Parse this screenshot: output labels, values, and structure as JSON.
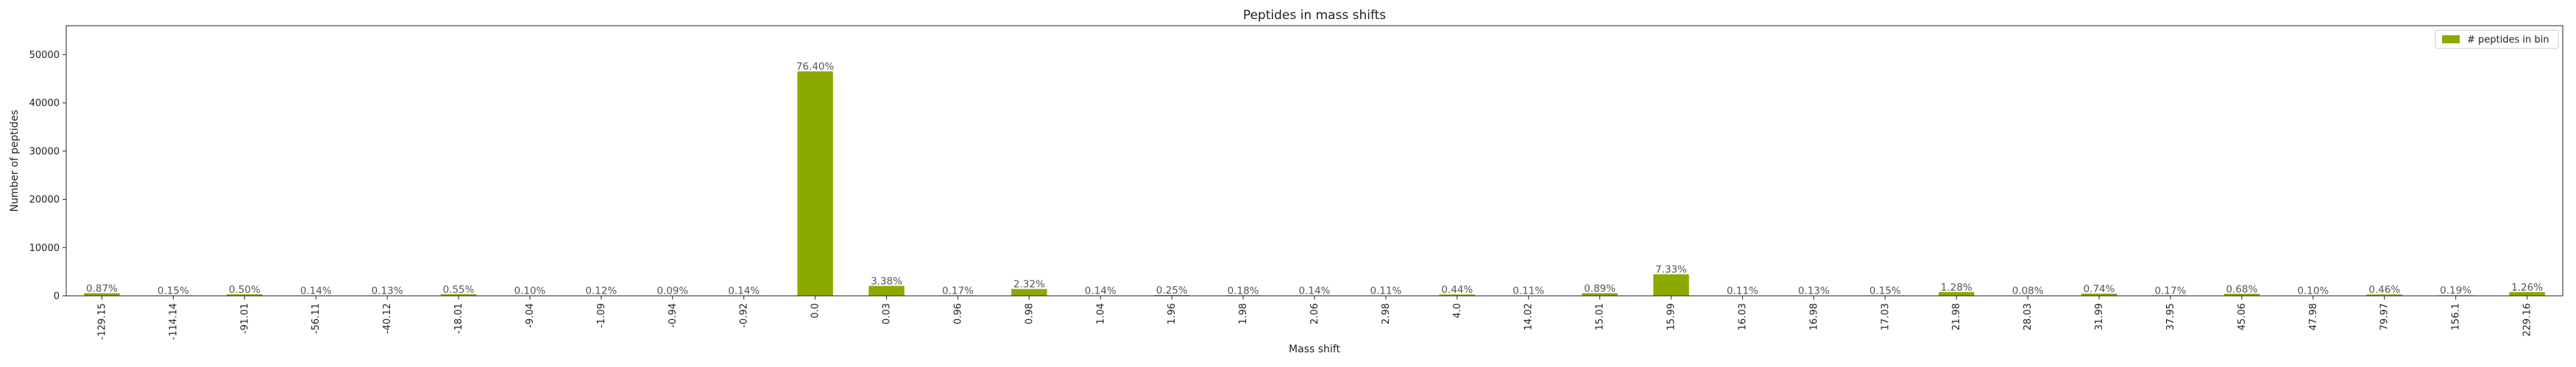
{
  "chart_data": {
    "type": "bar",
    "title": "Peptides in mass shifts",
    "xlabel": "Mass shift",
    "ylabel": "Number of peptides",
    "ylim": [
      0,
      56000
    ],
    "yticks": [
      0,
      10000,
      20000,
      30000,
      40000,
      50000
    ],
    "grid": false,
    "legend_position": "top-right",
    "bar_color": "#8aaa00",
    "categories": [
      "-129.15",
      "-114.14",
      "-91.01",
      "-56.11",
      "-40.12",
      "-18.01",
      "-9.04",
      "-1.09",
      "-0.94",
      "-0.92",
      "0.0",
      "0.03",
      "0.96",
      "0.98",
      "1.04",
      "1.96",
      "1.98",
      "2.06",
      "2.98",
      "4.0",
      "14.02",
      "15.01",
      "15.99",
      "16.03",
      "16.98",
      "17.03",
      "21.98",
      "28.03",
      "31.99",
      "37.95",
      "45.06",
      "47.98",
      "79.97",
      "156.1",
      "229.16"
    ],
    "series": [
      {
        "name": "# peptides in bin",
        "values": [
          530,
          92,
          305,
          85,
          79,
          335,
          61,
          73,
          55,
          85,
          46530,
          2058,
          104,
          1413,
          85,
          152,
          110,
          85,
          67,
          268,
          67,
          542,
          4464,
          67,
          79,
          92,
          780,
          49,
          451,
          104,
          414,
          61,
          280,
          116,
          767
        ],
        "labels": [
          "0.87%",
          "0.15%",
          "0.50%",
          "0.14%",
          "0.13%",
          "0.55%",
          "0.10%",
          "0.12%",
          "0.09%",
          "0.14%",
          "76.40%",
          "3.38%",
          "0.17%",
          "2.32%",
          "0.14%",
          "0.25%",
          "0.18%",
          "0.14%",
          "0.11%",
          "0.44%",
          "0.11%",
          "0.89%",
          "7.33%",
          "0.11%",
          "0.13%",
          "0.15%",
          "1.28%",
          "0.08%",
          "0.74%",
          "0.17%",
          "0.68%",
          "0.10%",
          "0.46%",
          "0.19%",
          "1.26%"
        ]
      }
    ]
  }
}
